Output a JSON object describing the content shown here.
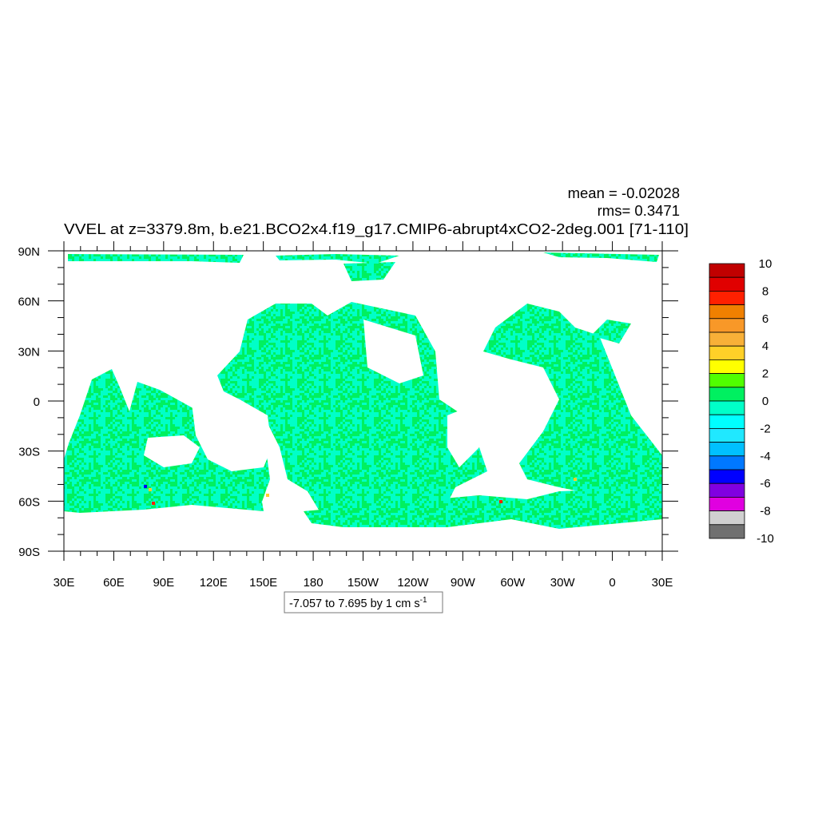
{
  "title": "VVEL at z=3379.8m, b.e21.BCO2x4.f19_g17.CMIP6-abrupt4xCO2-2deg.001 [71-110]",
  "stats": {
    "mean": "mean = -0.02028",
    "rms": "rms= 0.3471"
  },
  "info_box": {
    "text": "-7.057 to 7.695 by 1 cm s",
    "superscript": "-1"
  },
  "map": {
    "projection": "cylindrical equidistant",
    "lon_range": [
      30,
      390
    ],
    "lat_range": [
      -90,
      90
    ],
    "lat_labels": [
      "90N",
      "60N",
      "30N",
      "0",
      "30S",
      "60S",
      "90S"
    ],
    "lon_labels": [
      "30E",
      "60E",
      "90E",
      "120E",
      "150E",
      "180",
      "150W",
      "120W",
      "90W",
      "60W",
      "30W",
      "0",
      "30E"
    ],
    "land_color": "#ffffff",
    "dominant_fill_colors": [
      "#00ffc8",
      "#00f060"
    ]
  },
  "colorbar": {
    "levels": [
      -10,
      -9,
      -8,
      -7,
      -6,
      -5,
      -4,
      -3,
      -2,
      -1,
      0,
      1,
      2,
      3,
      4,
      5,
      6,
      7,
      8,
      9,
      10
    ],
    "labels": [
      "10",
      "8",
      "6",
      "4",
      "2",
      "0",
      "-2",
      "-4",
      "-6",
      "-8",
      "-10"
    ],
    "colors_top_to_bottom": [
      "#c00000",
      "#e00000",
      "#ff2000",
      "#f08000",
      "#f89828",
      "#f8b038",
      "#ffd028",
      "#ffff00",
      "#50ff00",
      "#00f060",
      "#00ffc8",
      "#00ffff",
      "#20e8ff",
      "#00c0ff",
      "#0078ff",
      "#0000ff",
      "#8000e0",
      "#e000e0",
      "#d0d0d0",
      "#707070"
    ]
  }
}
